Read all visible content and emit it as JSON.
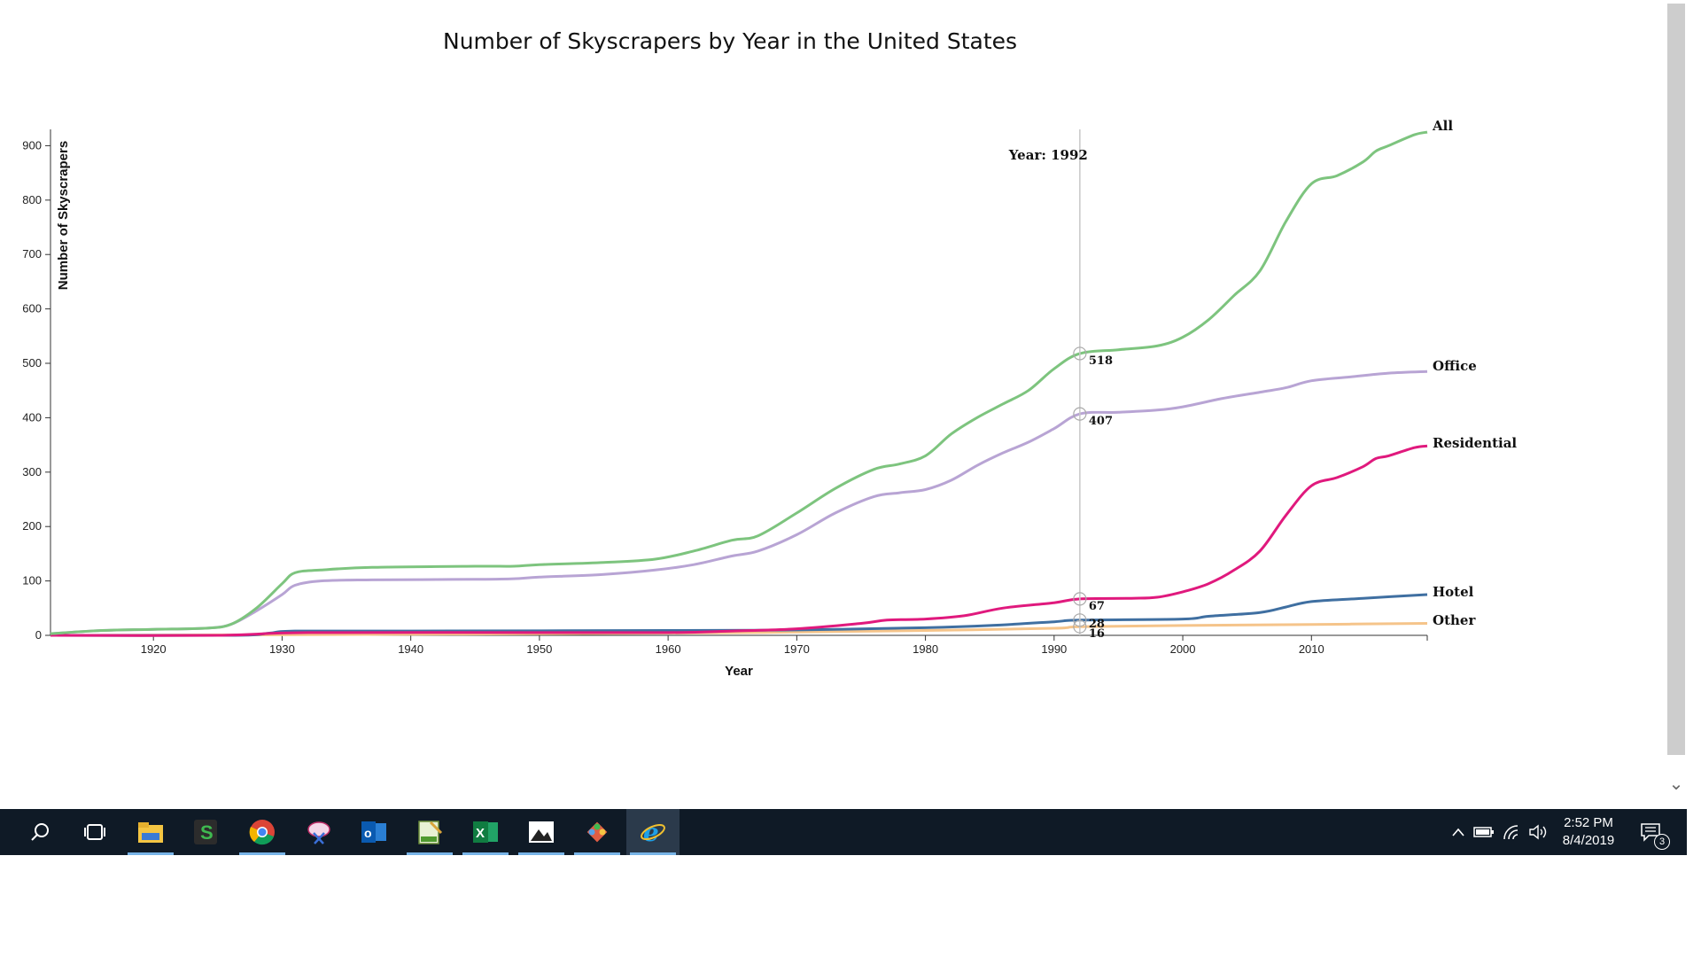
{
  "chart_data": {
    "type": "line",
    "title": "Number of Skyscrapers by Year in the United States",
    "xlabel": "Year",
    "ylabel": "Number of Skyscrapers",
    "xlim": [
      1912,
      2019
    ],
    "ylim": [
      0,
      930
    ],
    "x_ticks": [
      1920,
      1930,
      1940,
      1950,
      1960,
      1970,
      1980,
      1990,
      2000,
      2010
    ],
    "y_ticks": [
      0,
      100,
      200,
      300,
      400,
      500,
      600,
      700,
      800,
      900
    ],
    "grid": false,
    "legend": "end-of-line labels",
    "annotation": {
      "text": "Year: 1992",
      "x": 1992
    },
    "hover_values": [
      "518",
      "407",
      "67",
      "28",
      "16"
    ],
    "series": [
      {
        "name": "All",
        "color": "#7dc47e",
        "x": [
          1912,
          1916,
          1920,
          1924,
          1926,
          1928,
          1930,
          1931,
          1933,
          1937,
          1945,
          1948,
          1950,
          1955,
          1959,
          1962,
          1965,
          1967,
          1970,
          1973,
          1976,
          1978,
          1980,
          1982,
          1984,
          1986,
          1988,
          1990,
          1992,
          1995,
          1998,
          2000,
          2002,
          2004,
          2006,
          2008,
          2010,
          2012,
          2014,
          2015,
          2016,
          2018,
          2019
        ],
        "values": [
          3,
          9,
          11,
          13,
          20,
          50,
          95,
          115,
          120,
          125,
          127,
          127,
          130,
          134,
          140,
          155,
          175,
          183,
          225,
          270,
          305,
          315,
          330,
          370,
          400,
          425,
          450,
          490,
          518,
          525,
          532,
          548,
          580,
          625,
          670,
          760,
          830,
          845,
          870,
          890,
          900,
          920,
          925
        ]
      },
      {
        "name": "Office",
        "color": "#b8a4d4",
        "x": [
          1912,
          1916,
          1920,
          1924,
          1926,
          1928,
          1930,
          1931,
          1933,
          1937,
          1945,
          1948,
          1950,
          1955,
          1959,
          1962,
          1965,
          1967,
          1970,
          1973,
          1976,
          1978,
          1980,
          1982,
          1984,
          1986,
          1988,
          1990,
          1992,
          1995,
          1998,
          2000,
          2003,
          2006,
          2008,
          2010,
          2013,
          2016,
          2019
        ],
        "values": [
          3,
          9,
          11,
          13,
          20,
          45,
          75,
          92,
          100,
          102,
          103,
          104,
          107,
          112,
          120,
          130,
          146,
          155,
          185,
          225,
          255,
          262,
          268,
          285,
          312,
          335,
          355,
          380,
          407,
          410,
          414,
          420,
          435,
          447,
          455,
          468,
          475,
          482,
          485
        ]
      },
      {
        "name": "Residential",
        "color": "#e0197d",
        "x": [
          1912,
          1925,
          1932,
          1950,
          1960,
          1965,
          1970,
          1975,
          1977,
          1980,
          1983,
          1986,
          1990,
          1992,
          1996,
          1998,
          2000,
          2002,
          2004,
          2006,
          2008,
          2010,
          2012,
          2014,
          2015,
          2016,
          2018,
          2019
        ],
        "values": [
          0,
          0,
          5,
          5,
          5,
          8,
          12,
          22,
          28,
          30,
          36,
          50,
          60,
          67,
          68,
          70,
          80,
          95,
          120,
          155,
          220,
          275,
          290,
          310,
          325,
          330,
          345,
          348
        ]
      },
      {
        "name": "Hotel",
        "color": "#3f6fa1",
        "x": [
          1912,
          1926,
          1929,
          1931,
          1940,
          1960,
          1970,
          1980,
          1985,
          1990,
          1992,
          2000,
          2002,
          2006,
          2008,
          2010,
          2014,
          2019
        ],
        "values": [
          0,
          0,
          4,
          8,
          8,
          9,
          10,
          14,
          18,
          25,
          28,
          30,
          35,
          42,
          52,
          62,
          68,
          75
        ]
      },
      {
        "name": "Other",
        "color": "#f5c48a",
        "x": [
          1912,
          1930,
          1960,
          1970,
          1980,
          1990,
          1992,
          2000,
          2010,
          2019
        ],
        "values": [
          0,
          1,
          4,
          6,
          9,
          13,
          16,
          18,
          20,
          22
        ]
      }
    ]
  },
  "taskbar": {
    "icons": [
      "search-icon",
      "task-view-icon",
      "file-explorer-icon",
      "app-s-icon",
      "chrome-icon",
      "snipping-icon",
      "outlook-icon",
      "notepad-icon",
      "excel-icon",
      "photos-icon",
      "git-icon",
      "internet-explorer-icon"
    ],
    "time": "2:52 PM",
    "date": "8/4/2019",
    "notification_count": "3"
  }
}
